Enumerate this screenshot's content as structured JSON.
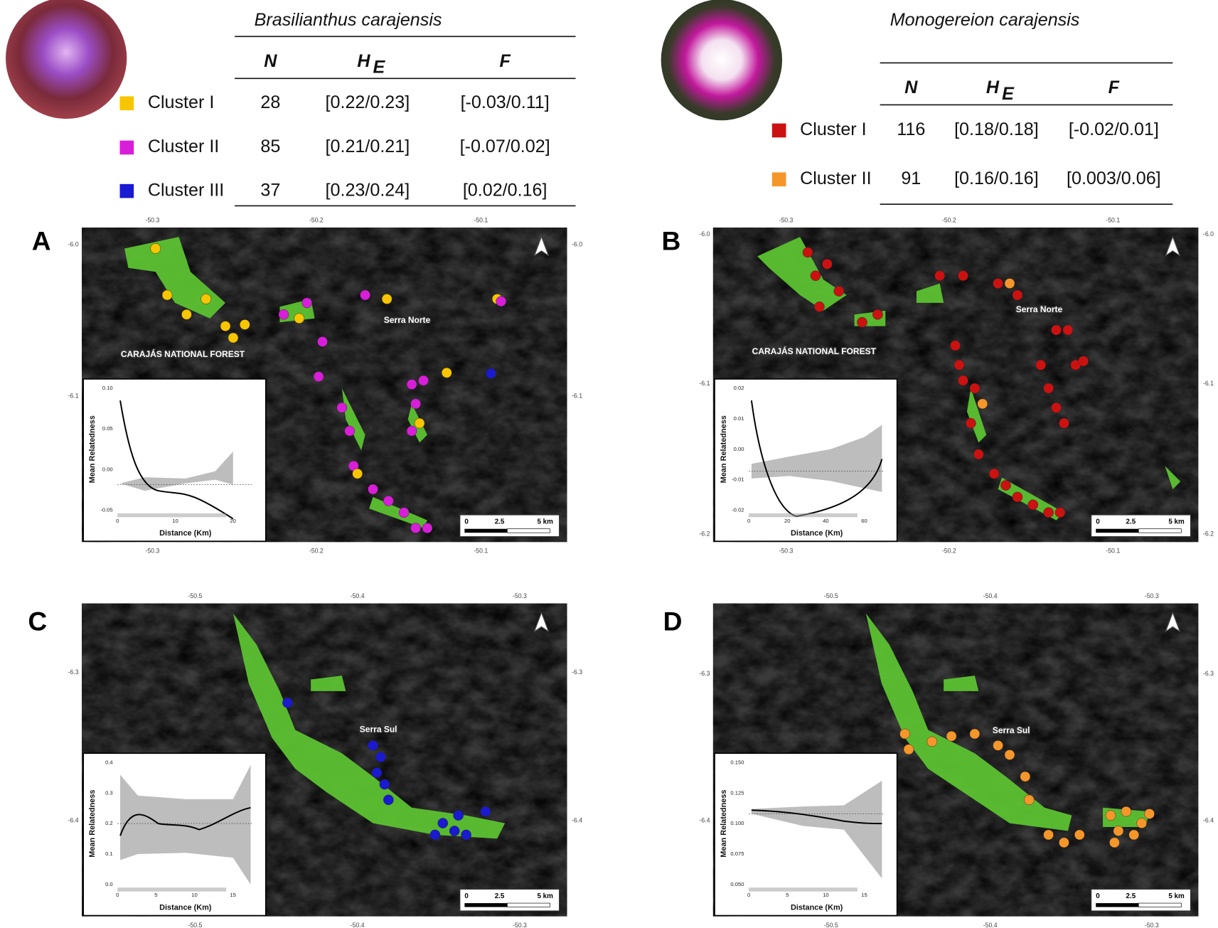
{
  "tables": [
    {
      "species": "Brasilianthus carajensis",
      "headers": {
        "n": "N",
        "he_main": "H",
        "he_sub": "E",
        "f": "F"
      },
      "rows": [
        {
          "cluster": "Cluster I",
          "color": "#f7c600",
          "n": "28",
          "he": "[0.22/0.23]",
          "f": "[-0.03/0.11]"
        },
        {
          "cluster": "Cluster II",
          "color": "#d81ed8",
          "n": "85",
          "he": "[0.21/0.21]",
          "f": "[-0.07/0.02]"
        },
        {
          "cluster": "Cluster III",
          "color": "#1a1ad0",
          "n": "37",
          "he": "[0.23/0.24]",
          "f": "[0.02/0.16]"
        }
      ]
    },
    {
      "species": "Monogereion carajensis",
      "headers": {
        "n": "N",
        "he_main": "H",
        "he_sub": "E",
        "f": "F"
      },
      "rows": [
        {
          "cluster": "Cluster I",
          "color": "#cc1111",
          "n": "116",
          "he": "[0.18/0.18]",
          "f": "[-0.02/0.01]"
        },
        {
          "cluster": "Cluster II",
          "color": "#f5962a",
          "n": "91",
          "he": "[0.16/0.16]",
          "f": "[0.003/0.06]"
        }
      ]
    }
  ],
  "panels": [
    {
      "label": "A",
      "lon": [
        "-50.3",
        "-50.2",
        "-50.1"
      ],
      "lat": [
        "-6.0",
        "-6.1"
      ],
      "places": [
        "CARAJÁS NATIONAL FOREST",
        "Serra Norte"
      ],
      "inset": {
        "ylabel": "Mean Relatedness",
        "xlabel": "Distance (Km)",
        "yticks": [
          "0.10",
          "0.05",
          "0.00",
          "-0.05"
        ],
        "xticks": [
          "0",
          "10",
          "20"
        ]
      },
      "scale": [
        "0",
        "2.5",
        "5 km"
      ]
    },
    {
      "label": "B",
      "lon": [
        "-50.3",
        "-50.2",
        "-50.1"
      ],
      "lat": [
        "-6.0",
        "-6.1",
        "-6.2"
      ],
      "places": [
        "CARAJÁS NATIONAL FOREST",
        "Serra Norte"
      ],
      "inset": {
        "ylabel": "Mean Relatedness",
        "xlabel": "Distance (Km)",
        "yticks": [
          "0.02",
          "0.01",
          "0.00",
          "-0.01",
          "-0.02"
        ],
        "xticks": [
          "0",
          "20",
          "40",
          "60"
        ]
      },
      "scale": [
        "0",
        "2.5",
        "5 km"
      ]
    },
    {
      "label": "C",
      "lon": [
        "-50.5",
        "-50.4",
        "-50.3"
      ],
      "lat": [
        "-6.3",
        "-6.4"
      ],
      "places": [
        "Serra Sul"
      ],
      "inset": {
        "ylabel": "Mean Relatedness",
        "xlabel": "Distance (Km)",
        "yticks": [
          "0.4",
          "0.3",
          "0.2",
          "0.1",
          "0.0"
        ],
        "xticks": [
          "0",
          "5",
          "10",
          "15"
        ]
      },
      "scale": [
        "0",
        "2.5",
        "5 km"
      ]
    },
    {
      "label": "D",
      "lon": [
        "-50.5",
        "-50.4",
        "-50.3"
      ],
      "lat": [
        "-6.3",
        "-6.4"
      ],
      "places": [
        "Serra Sul"
      ],
      "inset": {
        "ylabel": "Mean Relatedness",
        "xlabel": "Distance (Km)",
        "yticks": [
          "0.150",
          "0.125",
          "0.100",
          "0.075",
          "0.050"
        ],
        "xticks": [
          "0",
          "5",
          "10",
          "15"
        ]
      },
      "scale": [
        "0",
        "2.5",
        "5 km"
      ]
    }
  ]
}
